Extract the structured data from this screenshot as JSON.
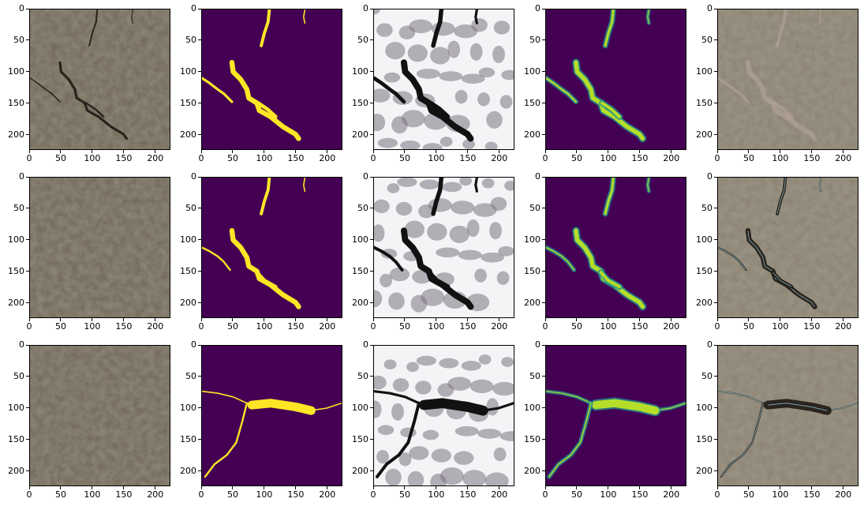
{
  "figure": {
    "rows": 3,
    "cols": 5,
    "x_ticks": [
      "0",
      "50",
      "100",
      "150",
      "200"
    ],
    "y_ticks": [
      "0",
      "50",
      "100",
      "150",
      "200"
    ],
    "axis_range": [
      0,
      224
    ],
    "colors": {
      "mask_background": "#440154",
      "mask_foreground": "#fde725",
      "prediction_mid": "#21918c",
      "prediction_high": "#b5de2b",
      "pavement": "#6f6656",
      "pavement_light": "#8a8170",
      "crack_dark": "#1f1a14"
    },
    "panels": [
      {
        "row": 0,
        "col": 0,
        "kind": "pavement-photo"
      },
      {
        "row": 0,
        "col": 1,
        "kind": "binary-mask"
      },
      {
        "row": 0,
        "col": 2,
        "kind": "saliency-map"
      },
      {
        "row": 0,
        "col": 3,
        "kind": "prediction-heatmap"
      },
      {
        "row": 0,
        "col": 4,
        "kind": "pavement-overlay"
      },
      {
        "row": 1,
        "col": 0,
        "kind": "pavement-photo"
      },
      {
        "row": 1,
        "col": 1,
        "kind": "binary-mask"
      },
      {
        "row": 1,
        "col": 2,
        "kind": "saliency-map"
      },
      {
        "row": 1,
        "col": 3,
        "kind": "prediction-heatmap"
      },
      {
        "row": 1,
        "col": 4,
        "kind": "pavement-overlay"
      },
      {
        "row": 2,
        "col": 0,
        "kind": "pavement-photo"
      },
      {
        "row": 2,
        "col": 1,
        "kind": "binary-mask"
      },
      {
        "row": 2,
        "col": 2,
        "kind": "saliency-map"
      },
      {
        "row": 2,
        "col": 3,
        "kind": "prediction-heatmap"
      },
      {
        "row": 2,
        "col": 4,
        "kind": "pavement-overlay"
      }
    ]
  }
}
